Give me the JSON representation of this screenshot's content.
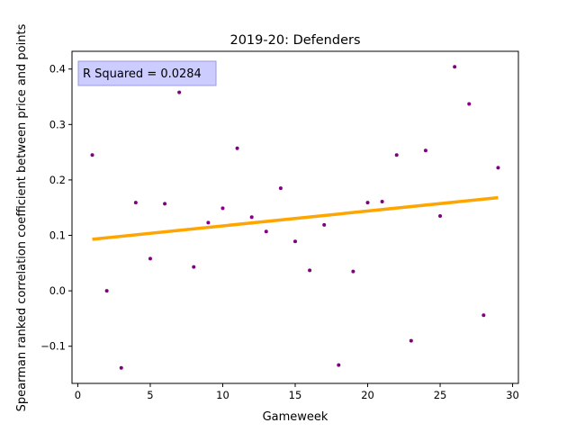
{
  "chart_data": {
    "type": "scatter",
    "title": "2019-20: Defenders",
    "xlabel": "Gameweek",
    "ylabel": "Spearman ranked correlation coefficient between price and points",
    "xlim": [
      -0.4,
      30.4
    ],
    "ylim": [
      -0.167,
      0.432
    ],
    "xticks": [
      0,
      5,
      10,
      15,
      20,
      25,
      30
    ],
    "xtick_labels": [
      "0",
      "5",
      "10",
      "15",
      "20",
      "25",
      "30"
    ],
    "yticks": [
      -0.1,
      0.0,
      0.1,
      0.2,
      0.3,
      0.4
    ],
    "ytick_labels": [
      "−0.1",
      "0.0",
      "0.1",
      "0.2",
      "0.3",
      "0.4"
    ],
    "grid": false,
    "annotation": "R Squared = 0.0284",
    "annotation_position": "top-left",
    "points": {
      "color": "#800080",
      "x": [
        1,
        2,
        3,
        4,
        5,
        6,
        7,
        8,
        9,
        10,
        11,
        12,
        13,
        14,
        15,
        16,
        17,
        18,
        19,
        20,
        21,
        22,
        23,
        24,
        25,
        26,
        27,
        28,
        29
      ],
      "y": [
        0.245,
        0.0,
        -0.139,
        0.159,
        0.058,
        0.157,
        0.358,
        0.043,
        0.123,
        0.149,
        0.257,
        0.133,
        0.107,
        0.185,
        0.089,
        0.037,
        0.119,
        -0.134,
        0.035,
        0.159,
        0.161,
        0.245,
        -0.09,
        0.253,
        0.135,
        0.404,
        0.337,
        -0.044,
        0.222
      ]
    },
    "fit_line": {
      "color": "#ffa500",
      "x": [
        1,
        29
      ],
      "y": [
        0.093,
        0.168
      ]
    }
  }
}
